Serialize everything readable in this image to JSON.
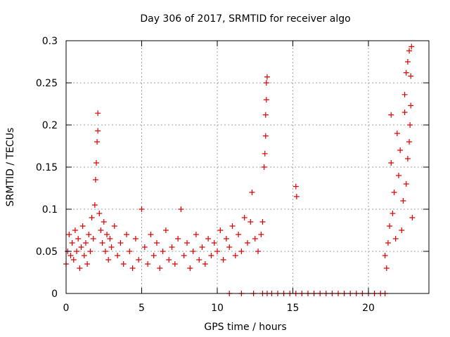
{
  "chart_data": {
    "type": "scatter",
    "title": "Day 306 of 2017, SRMTID for receiver algo",
    "xlabel": "GPS time / hours",
    "ylabel": "SRMTID / TECUs",
    "xlim": [
      0,
      24
    ],
    "ylim": [
      0,
      0.3
    ],
    "xticks": [
      0,
      5,
      10,
      15,
      20
    ],
    "xtick_labels": [
      "0",
      "5",
      "10",
      "15",
      "20"
    ],
    "yticks": [
      0,
      0.05,
      0.1,
      0.15,
      0.2,
      0.25,
      0.3
    ],
    "ytick_labels": [
      "0",
      "0.05",
      "0.1",
      "0.15",
      "0.2",
      "0.25",
      "0.3"
    ],
    "grid": true,
    "marker": "+",
    "color": "#e00000",
    "series": [
      {
        "name": "SRMTID",
        "points": [
          [
            0.0,
            0.035
          ],
          [
            0.1,
            0.05
          ],
          [
            0.2,
            0.07
          ],
          [
            0.3,
            0.045
          ],
          [
            0.4,
            0.06
          ],
          [
            0.5,
            0.04
          ],
          [
            0.6,
            0.075
          ],
          [
            0.7,
            0.05
          ],
          [
            0.8,
            0.065
          ],
          [
            0.9,
            0.03
          ],
          [
            1.0,
            0.055
          ],
          [
            1.1,
            0.08
          ],
          [
            1.2,
            0.045
          ],
          [
            1.3,
            0.06
          ],
          [
            1.4,
            0.035
          ],
          [
            1.5,
            0.07
          ],
          [
            1.6,
            0.05
          ],
          [
            1.7,
            0.09
          ],
          [
            1.8,
            0.065
          ],
          [
            1.9,
            0.105
          ],
          [
            1.95,
            0.135
          ],
          [
            2.0,
            0.155
          ],
          [
            2.05,
            0.18
          ],
          [
            2.1,
            0.193
          ],
          [
            2.1,
            0.214
          ],
          [
            2.2,
            0.095
          ],
          [
            2.3,
            0.075
          ],
          [
            2.4,
            0.06
          ],
          [
            2.5,
            0.085
          ],
          [
            2.6,
            0.05
          ],
          [
            2.7,
            0.07
          ],
          [
            2.8,
            0.04
          ],
          [
            2.9,
            0.065
          ],
          [
            3.0,
            0.055
          ],
          [
            3.2,
            0.08
          ],
          [
            3.4,
            0.045
          ],
          [
            3.6,
            0.06
          ],
          [
            3.8,
            0.035
          ],
          [
            4.0,
            0.07
          ],
          [
            4.2,
            0.05
          ],
          [
            4.4,
            0.03
          ],
          [
            4.6,
            0.065
          ],
          [
            4.8,
            0.04
          ],
          [
            5.0,
            0.1
          ],
          [
            5.2,
            0.055
          ],
          [
            5.4,
            0.035
          ],
          [
            5.6,
            0.07
          ],
          [
            5.8,
            0.045
          ],
          [
            6.0,
            0.06
          ],
          [
            6.2,
            0.03
          ],
          [
            6.4,
            0.05
          ],
          [
            6.6,
            0.075
          ],
          [
            6.8,
            0.04
          ],
          [
            7.0,
            0.055
          ],
          [
            7.2,
            0.035
          ],
          [
            7.4,
            0.065
          ],
          [
            7.6,
            0.1
          ],
          [
            7.8,
            0.045
          ],
          [
            8.0,
            0.06
          ],
          [
            8.2,
            0.03
          ],
          [
            8.4,
            0.05
          ],
          [
            8.6,
            0.07
          ],
          [
            8.8,
            0.04
          ],
          [
            9.0,
            0.055
          ],
          [
            9.2,
            0.035
          ],
          [
            9.4,
            0.065
          ],
          [
            9.6,
            0.045
          ],
          [
            9.8,
            0.06
          ],
          [
            10.0,
            0.05
          ],
          [
            10.2,
            0.075
          ],
          [
            10.4,
            0.04
          ],
          [
            10.6,
            0.065
          ],
          [
            10.8,
            0.055
          ],
          [
            11.0,
            0.08
          ],
          [
            11.2,
            0.045
          ],
          [
            11.4,
            0.07
          ],
          [
            11.6,
            0.05
          ],
          [
            11.8,
            0.09
          ],
          [
            12.0,
            0.06
          ],
          [
            12.2,
            0.085
          ],
          [
            12.3,
            0.12
          ],
          [
            12.5,
            0.065
          ],
          [
            12.7,
            0.05
          ],
          [
            12.9,
            0.07
          ],
          [
            13.0,
            0.085
          ],
          [
            13.1,
            0.15
          ],
          [
            13.15,
            0.166
          ],
          [
            13.2,
            0.187
          ],
          [
            13.2,
            0.212
          ],
          [
            13.25,
            0.23
          ],
          [
            13.25,
            0.25
          ],
          [
            13.3,
            0.257
          ],
          [
            15.2,
            0.127
          ],
          [
            15.25,
            0.115
          ],
          [
            10.8,
            0.0
          ],
          [
            11.6,
            0.0
          ],
          [
            12.4,
            0.0
          ],
          [
            13.0,
            0.0
          ],
          [
            13.3,
            0.0
          ],
          [
            13.6,
            0.0
          ],
          [
            14.0,
            0.0
          ],
          [
            14.4,
            0.0
          ],
          [
            14.8,
            0.0
          ],
          [
            15.2,
            0.0
          ],
          [
            15.6,
            0.0
          ],
          [
            16.0,
            0.0
          ],
          [
            16.4,
            0.0
          ],
          [
            16.8,
            0.0
          ],
          [
            17.2,
            0.0
          ],
          [
            17.6,
            0.0
          ],
          [
            18.0,
            0.0
          ],
          [
            18.4,
            0.0
          ],
          [
            18.8,
            0.0
          ],
          [
            19.2,
            0.0
          ],
          [
            19.6,
            0.0
          ],
          [
            20.0,
            0.0
          ],
          [
            20.4,
            0.0
          ],
          [
            20.8,
            0.0
          ],
          [
            21.1,
            0.0
          ],
          [
            21.1,
            0.045
          ],
          [
            21.2,
            0.03
          ],
          [
            21.3,
            0.06
          ],
          [
            21.4,
            0.08
          ],
          [
            21.5,
            0.155
          ],
          [
            21.5,
            0.212
          ],
          [
            21.6,
            0.095
          ],
          [
            21.7,
            0.12
          ],
          [
            21.8,
            0.065
          ],
          [
            21.9,
            0.19
          ],
          [
            22.0,
            0.14
          ],
          [
            22.1,
            0.17
          ],
          [
            22.2,
            0.075
          ],
          [
            22.3,
            0.11
          ],
          [
            22.4,
            0.215
          ],
          [
            22.4,
            0.236
          ],
          [
            22.5,
            0.13
          ],
          [
            22.5,
            0.262
          ],
          [
            22.6,
            0.16
          ],
          [
            22.6,
            0.275
          ],
          [
            22.7,
            0.18
          ],
          [
            22.7,
            0.288
          ],
          [
            22.75,
            0.2
          ],
          [
            22.8,
            0.223
          ],
          [
            22.8,
            0.258
          ],
          [
            22.85,
            0.293
          ],
          [
            22.9,
            0.09
          ]
        ]
      }
    ]
  }
}
